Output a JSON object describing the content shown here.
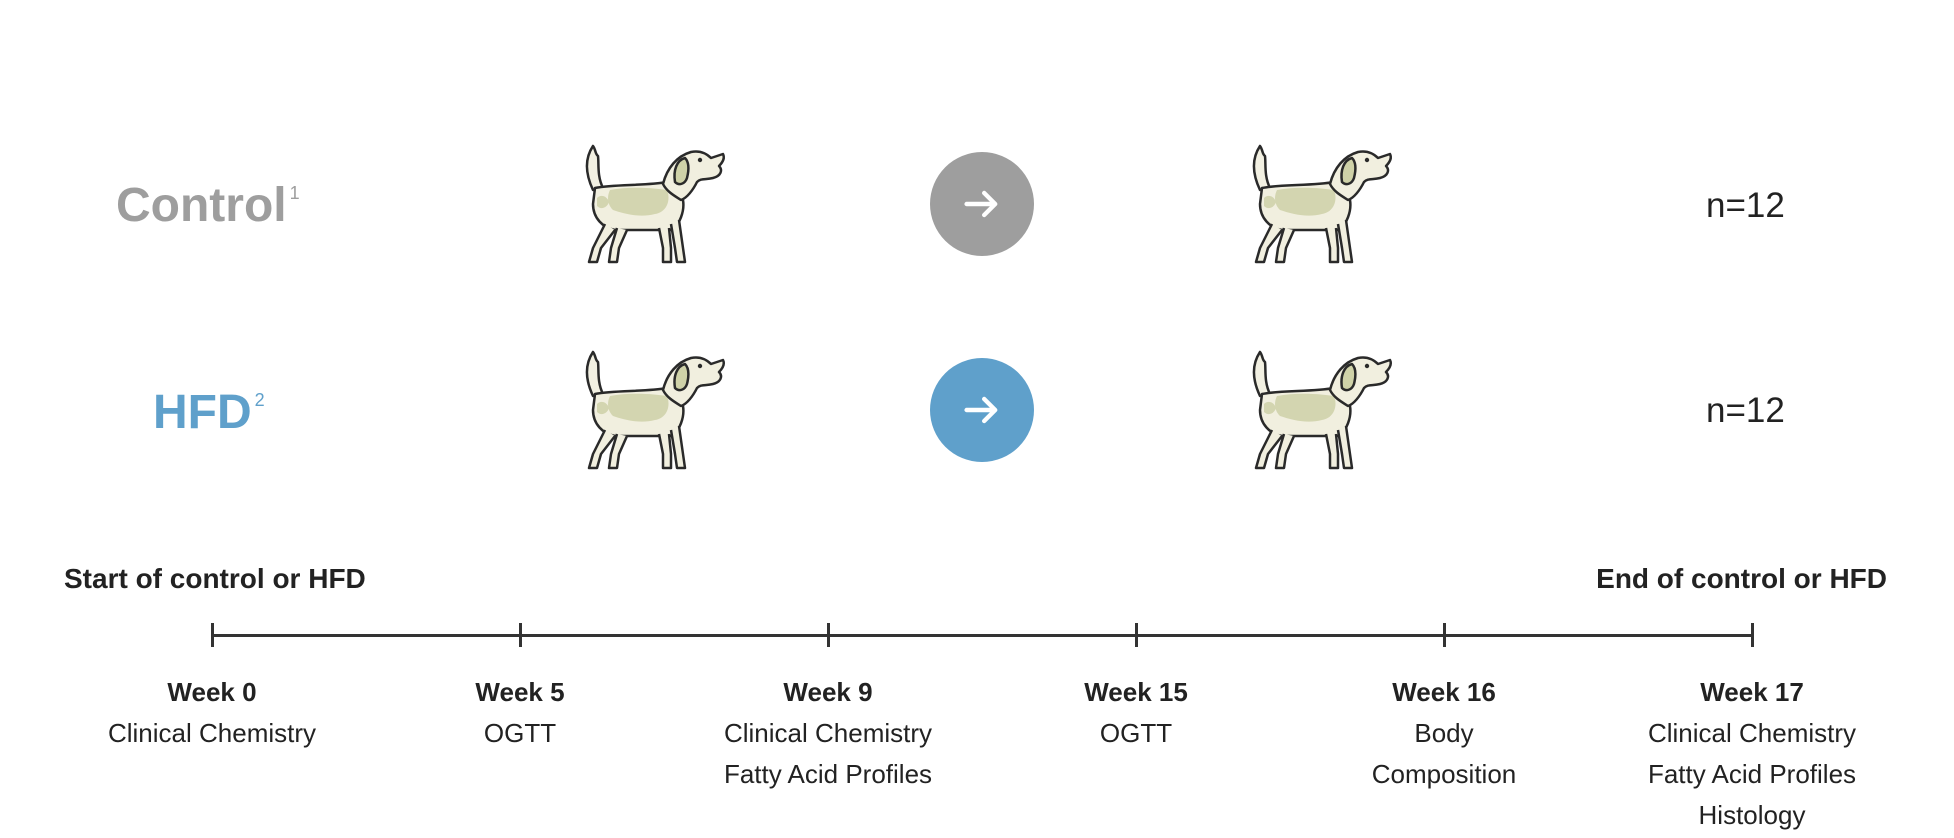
{
  "groups": {
    "control": {
      "label": "Control",
      "sup": "1",
      "n": "n=12",
      "color": "#9e9e9e"
    },
    "hfd": {
      "label": "HFD",
      "sup": "2",
      "n": "n=12",
      "color": "#5fa0cb"
    }
  },
  "icons": {
    "dog": "dog-icon",
    "arrow": "right-arrow-icon"
  },
  "timeline": {
    "start_label": "Start of control or HFD",
    "end_label": "End of control or HFD",
    "weeks": [
      {
        "title": "Week 0",
        "lines": [
          "Clinical Chemistry"
        ]
      },
      {
        "title": "Week 5",
        "lines": [
          "OGTT"
        ]
      },
      {
        "title": "Week 9",
        "lines": [
          "Clinical Chemistry",
          "Fatty Acid Profiles"
        ]
      },
      {
        "title": "Week 15",
        "lines": [
          "OGTT"
        ]
      },
      {
        "title": "Week 16",
        "lines": [
          "Body",
          "Composition"
        ]
      },
      {
        "title": "Week 17",
        "lines": [
          "Clinical Chemistry",
          "Fatty Acid Profiles",
          "Histology"
        ]
      }
    ]
  }
}
